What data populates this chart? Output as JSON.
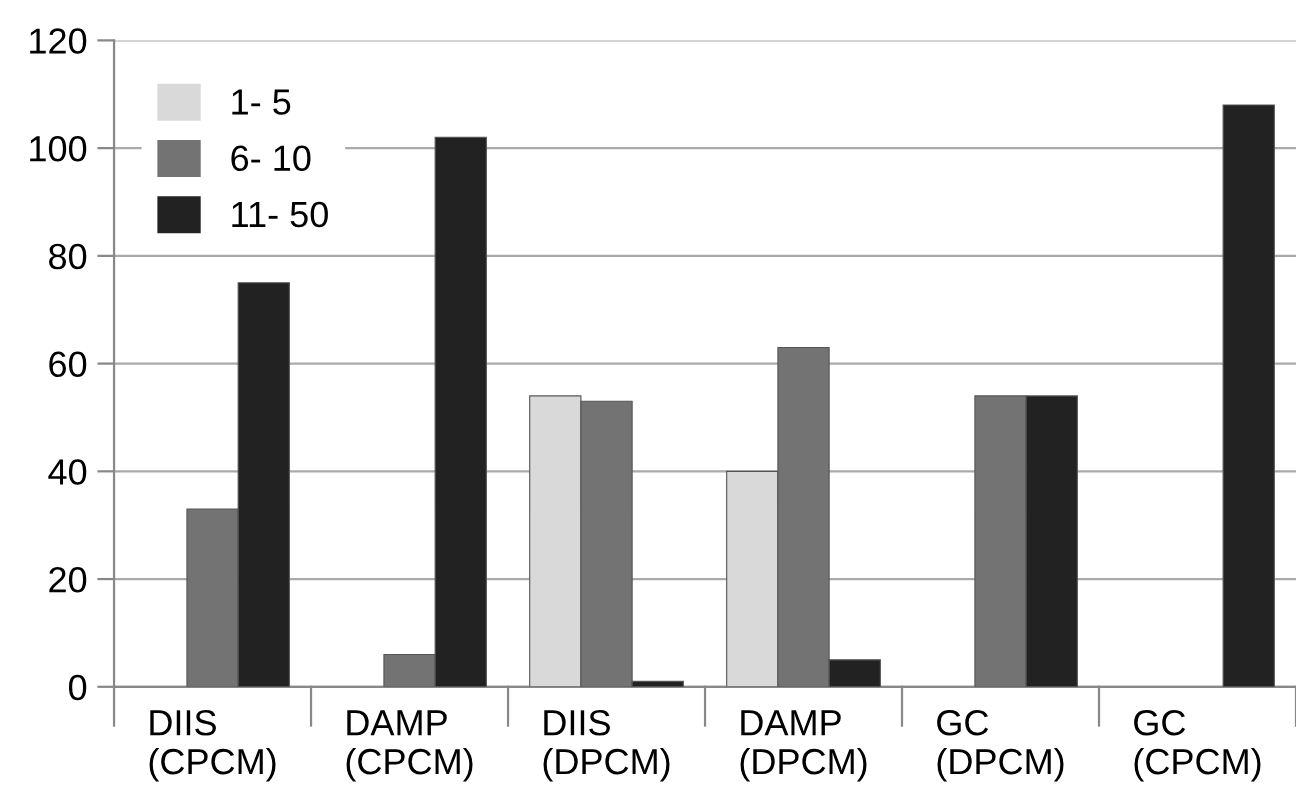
{
  "chart_data": {
    "type": "bar",
    "categories": [
      "DIIS\n(CPCM)",
      "DAMP\n(CPCM)",
      "DIIS\n(DPCM)",
      "DAMP\n(DPCM)",
      "GC\n(DPCM)",
      "GC\n(CPCM)"
    ],
    "series": [
      {
        "name": "1- 5",
        "color": "#d9d9d9",
        "values": [
          null,
          null,
          54,
          40,
          null,
          null
        ]
      },
      {
        "name": "6- 10",
        "color": "#737373",
        "values": [
          33,
          6,
          53,
          63,
          54,
          null
        ]
      },
      {
        "name": "11- 50",
        "color": "#222222",
        "values": [
          75,
          102,
          1,
          5,
          54,
          108
        ]
      }
    ],
    "ylim": [
      0,
      120
    ],
    "yticks": [
      0,
      20,
      40,
      60,
      80,
      100,
      120
    ],
    "grid": "y",
    "legend": "top left"
  }
}
